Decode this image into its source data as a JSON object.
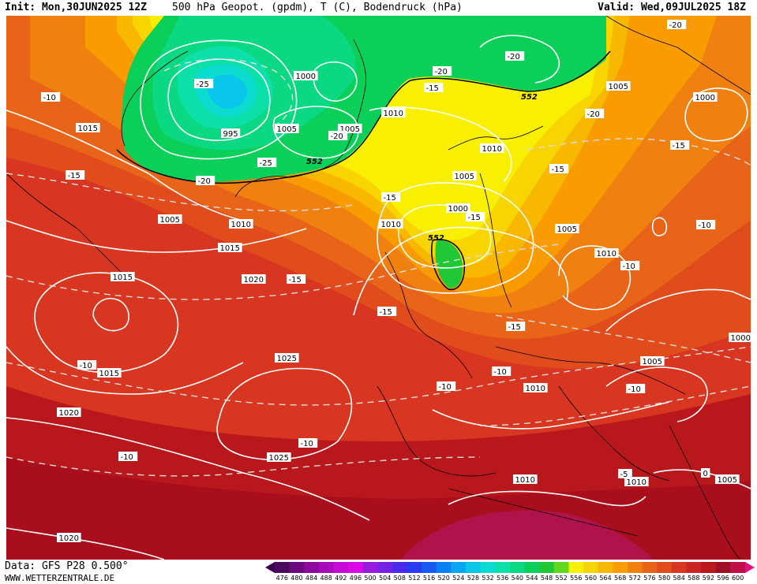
{
  "header": {
    "init": "Init: Mon,30JUN2025 12Z",
    "title": "500 hPa Geopot. (gpdm), T (C), Bodendruck (hPa)",
    "valid": "Valid: Wed,09JUL2025 18Z"
  },
  "footer": {
    "data_source": "Data: GFS P28 0.500°",
    "website": "WWW.WETTERZENTRALE.DE"
  },
  "legend": {
    "values": [
      "476",
      "480",
      "484",
      "488",
      "492",
      "496",
      "500",
      "504",
      "508",
      "512",
      "516",
      "520",
      "524",
      "528",
      "532",
      "536",
      "540",
      "544",
      "548",
      "552",
      "556",
      "560",
      "564",
      "568",
      "572",
      "576",
      "580",
      "584",
      "588",
      "592",
      "596",
      "600"
    ],
    "colors": [
      "#4b0a5c",
      "#6a0a7c",
      "#8a0a9c",
      "#a80ab8",
      "#c40ad4",
      "#d80ae8",
      "#9a1adc",
      "#7422e6",
      "#4a2ae8",
      "#2a3af0",
      "#1a5af4",
      "#0a80f6",
      "#0aa6f4",
      "#0ac6ea",
      "#0adcd0",
      "#0ae0a8",
      "#0ad882",
      "#0ad05a",
      "#20c838",
      "#60d820",
      "#f8f000",
      "#f8d400",
      "#f8b800",
      "#f89c00",
      "#f08010",
      "#e86418",
      "#e04c1c",
      "#d83620",
      "#c82424",
      "#b8181c",
      "#a00e24",
      "#c0104c"
    ],
    "left_arrow_color": "#3c0050",
    "right_arrow_color": "#e0107c"
  },
  "pressure_labels": [
    {
      "text": "1015"
    },
    {
      "text": "1005"
    },
    {
      "text": "1010"
    },
    {
      "text": "1015"
    },
    {
      "text": "1015"
    },
    {
      "text": "1020"
    },
    {
      "text": "1015"
    },
    {
      "text": "1025"
    },
    {
      "text": "1020"
    },
    {
      "text": "1025"
    },
    {
      "text": "1020"
    },
    {
      "text": "995"
    },
    {
      "text": "1000"
    },
    {
      "text": "1005"
    },
    {
      "text": "1005"
    },
    {
      "text": "1010"
    },
    {
      "text": "1010"
    },
    {
      "text": "1005"
    },
    {
      "text": "1000"
    },
    {
      "text": "1010"
    },
    {
      "text": "1005"
    },
    {
      "text": "1010"
    },
    {
      "text": "1010"
    },
    {
      "text": "1005"
    },
    {
      "text": "1000"
    },
    {
      "text": "1005"
    },
    {
      "text": "1000"
    },
    {
      "text": "1010"
    },
    {
      "text": "1010"
    },
    {
      "text": "1005"
    }
  ],
  "temperature_labels": [
    {
      "text": "-10"
    },
    {
      "text": "-15"
    },
    {
      "text": "-25"
    },
    {
      "text": "-20"
    },
    {
      "text": "-25"
    },
    {
      "text": "-20"
    },
    {
      "text": "-20"
    },
    {
      "text": "-15"
    },
    {
      "text": "-20"
    },
    {
      "text": "-15"
    },
    {
      "text": "-20"
    },
    {
      "text": "-15"
    },
    {
      "text": "-15"
    },
    {
      "text": "-15"
    },
    {
      "text": "-15"
    },
    {
      "text": "-15"
    },
    {
      "text": "-15"
    },
    {
      "text": "-10"
    },
    {
      "text": "-10"
    },
    {
      "text": "-10"
    },
    {
      "text": "-10"
    },
    {
      "text": "-10"
    },
    {
      "text": "-10"
    },
    {
      "text": "-10"
    },
    {
      "text": "-10"
    },
    {
      "text": "-5"
    },
    {
      "text": "-5"
    },
    {
      "text": "0"
    },
    {
      "text": "-20"
    }
  ],
  "geopotential_labels": [
    {
      "text": "552"
    },
    {
      "text": "552"
    },
    {
      "text": "552"
    }
  ]
}
